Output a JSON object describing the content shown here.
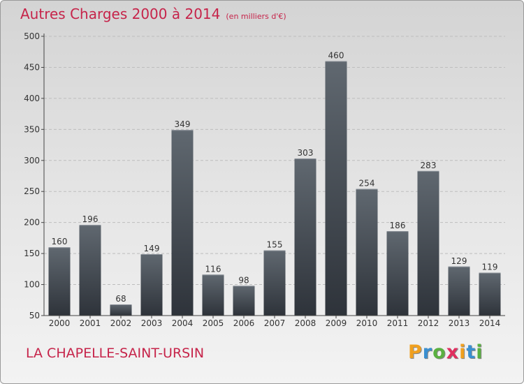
{
  "header": {
    "title": "Autres Charges 2000 à 2014",
    "subtitle": "(en milliers d'€)"
  },
  "footer": {
    "commune": "LA CHAPELLE-SAINT-URSIN",
    "logo": {
      "letters": [
        "P",
        "r",
        "o",
        "x",
        "i",
        "t",
        "i"
      ],
      "colors": [
        "#f0a020",
        "#3a8fd0",
        "#5ab040",
        "#e03060",
        "#f0a020",
        "#3a8fd0",
        "#5ab040"
      ]
    }
  },
  "colors": {
    "accent": "#c6244a",
    "bar_top": "#606870",
    "bar_bottom": "#2e333a",
    "axis": "#444444",
    "grid": "#bdbdbd"
  },
  "chart_data": {
    "type": "bar",
    "title": "Autres Charges 2000 à 2014",
    "ylabel": "",
    "xlabel": "",
    "categories": [
      "2000",
      "2001",
      "2002",
      "2003",
      "2004",
      "2005",
      "2006",
      "2007",
      "2008",
      "2009",
      "2010",
      "2011",
      "2012",
      "2013",
      "2014"
    ],
    "values": [
      160,
      196,
      68,
      149,
      349,
      116,
      98,
      155,
      303,
      460,
      254,
      186,
      283,
      129,
      119
    ],
    "ylim": [
      50,
      500
    ],
    "yticks": [
      50,
      100,
      150,
      200,
      250,
      300,
      350,
      400,
      450,
      500
    ],
    "grid": true,
    "data_labels": true
  }
}
